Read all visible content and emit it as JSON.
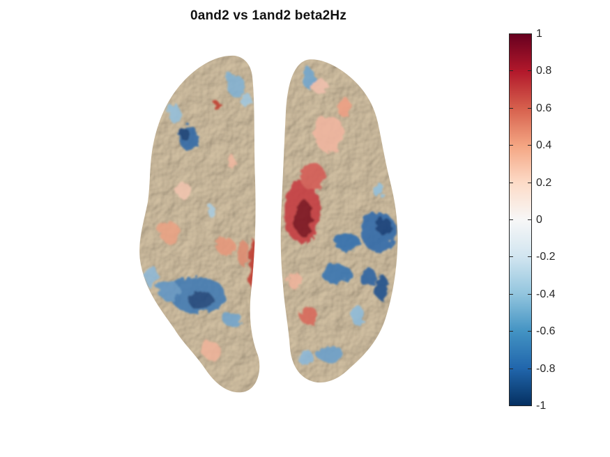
{
  "figure": {
    "title": "0and2 vs 1and2 beta2Hz"
  },
  "colorbar": {
    "tick_labels": [
      "1",
      "0.8",
      "0.6",
      "0.4",
      "0.2",
      "0",
      "-0.2",
      "-0.4",
      "-0.6",
      "-0.8",
      "-1"
    ],
    "tick_values": [
      1,
      0.8,
      0.6,
      0.4,
      0.2,
      0,
      -0.2,
      -0.4,
      -0.6,
      -0.8,
      -1
    ],
    "range": [
      -1,
      1
    ],
    "colormap_stops": [
      "#67001f",
      "#b2182b",
      "#d6604d",
      "#f4a582",
      "#fddbc7",
      "#f7f7f7",
      "#d1e5f0",
      "#92c5de",
      "#4393c3",
      "#2166ac",
      "#053061"
    ]
  },
  "brain": {
    "view": "top",
    "surface_color": "#e6dccb"
  }
}
